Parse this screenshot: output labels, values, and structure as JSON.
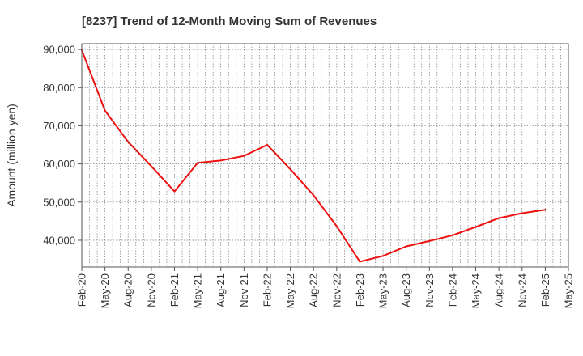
{
  "chart_data": {
    "type": "line",
    "title": "[8237]  Trend of 12-Month Moving Sum of Revenues",
    "xlabel": "",
    "ylabel": "Amount (million yen)",
    "ylim": [
      33000,
      91500
    ],
    "yticks": [
      40000,
      50000,
      60000,
      70000,
      80000,
      90000
    ],
    "ytick_labels": [
      "40,000",
      "50,000",
      "60,000",
      "70,000",
      "80,000",
      "90,000"
    ],
    "xtick_labels": [
      "Feb-20",
      "May-20",
      "Aug-20",
      "Nov-20",
      "Feb-21",
      "May-21",
      "Aug-21",
      "Nov-21",
      "Feb-22",
      "May-22",
      "Aug-22",
      "Nov-22",
      "Feb-23",
      "May-23",
      "Aug-23",
      "Nov-23",
      "Feb-24",
      "May-24",
      "Aug-24",
      "Nov-24",
      "Feb-25",
      "May-25"
    ],
    "x": [
      "Feb-20",
      "May-20",
      "Aug-20",
      "Nov-20",
      "Feb-21",
      "May-21",
      "Aug-21",
      "Nov-21",
      "Feb-22",
      "May-22",
      "Aug-22",
      "Nov-22",
      "Feb-23",
      "May-23",
      "Aug-23",
      "Nov-23",
      "Feb-24",
      "May-24",
      "Aug-24",
      "Nov-24",
      "Feb-25"
    ],
    "series": [
      {
        "values": [
          89800,
          74000,
          65800,
          59400,
          52800,
          60300,
          60900,
          62100,
          65000,
          58600,
          51800,
          43700,
          34400,
          35900,
          38400,
          39800,
          41300,
          43500,
          45800,
          47100,
          48000
        ],
        "color": "#ee1111"
      }
    ],
    "grid": true,
    "legend": "none"
  }
}
